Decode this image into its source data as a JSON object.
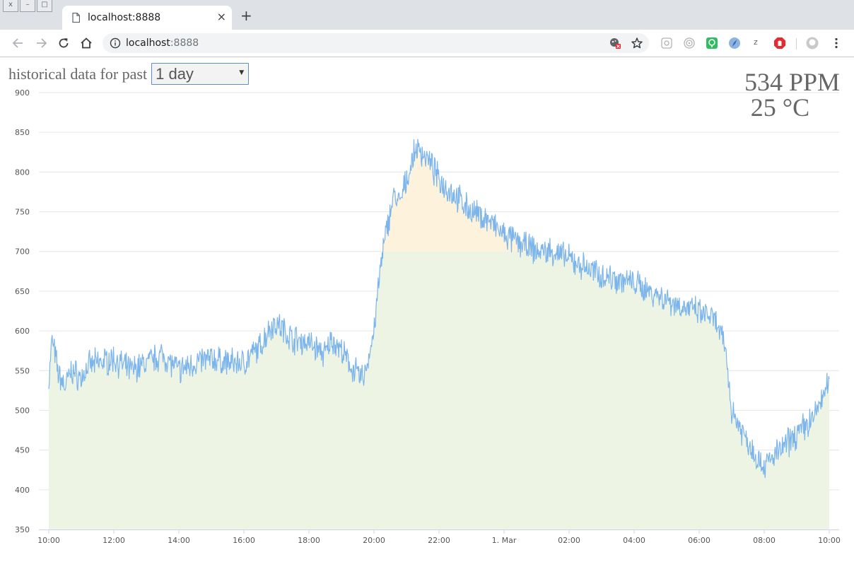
{
  "browser": {
    "window_controls": [
      "x",
      "–",
      "□"
    ],
    "tab": {
      "title": "localhost:8888",
      "close": "×"
    },
    "new_tab": "+",
    "address": {
      "host": "localhost",
      "port": ":8888"
    },
    "icons": {
      "back": "arrow-left-icon",
      "forward": "arrow-right-icon",
      "reload": "reload-icon",
      "home": "home-icon",
      "info": "info-icon",
      "blocked": "tracker-blocked-icon",
      "bookmark": "star-icon",
      "menu": "kebab-menu-icon"
    },
    "extensions": [
      {
        "name": "ext-puzzle-icon",
        "color": "#9aa0a6"
      },
      {
        "name": "ext-target-icon",
        "color": "#9aa0a6"
      },
      {
        "name": "ext-evernote-icon",
        "color": "#2dbe60"
      },
      {
        "name": "ext-compass-icon",
        "color": "#3b6db3"
      },
      {
        "name": "ext-zotero-icon",
        "color": "#5f6368",
        "text": "z"
      },
      {
        "name": "ext-adblock-icon",
        "color": "#e8292f"
      },
      {
        "name": "ext-profile-icon",
        "color": "#9aa0a6"
      }
    ]
  },
  "controls": {
    "range_label": "historical data for past",
    "range_selected": "1 day"
  },
  "readout": {
    "ppm": "534 PPM",
    "temperature": "25 °C"
  },
  "chart_data": {
    "type": "area",
    "title": "",
    "xlabel": "",
    "ylabel": "",
    "ylim": [
      350,
      900
    ],
    "y_ticks": [
      900,
      850,
      800,
      750,
      700,
      650,
      600,
      550,
      500,
      450,
      400,
      350
    ],
    "x_ticks": [
      "10:00",
      "12:00",
      "14:00",
      "16:00",
      "18:00",
      "20:00",
      "22:00",
      "1. Mar",
      "02:00",
      "04:00",
      "06:00",
      "08:00",
      "10:00"
    ],
    "x_hours_range": [
      0,
      24
    ],
    "threshold": 700,
    "colors": {
      "line": "#7cb5ec",
      "fill_below": "#edf4e3",
      "fill_above": "#fdf3dc",
      "grid": "#e6e6e6"
    },
    "grid": true,
    "series": [
      {
        "x_hours": [
          0,
          0.1,
          0.3,
          0.5,
          0.7,
          1.0,
          1.2,
          1.5,
          2.0,
          2.5,
          3.0,
          3.5,
          4.0,
          4.5,
          5.0,
          5.5,
          6.0,
          6.5,
          6.8,
          7.0,
          7.5,
          8.0,
          8.5,
          8.7,
          9.0,
          9.2,
          9.4,
          9.6,
          9.7,
          9.8,
          10.0,
          10.2,
          10.4,
          10.5,
          10.6,
          10.8,
          11.0,
          11.3,
          11.6,
          12.0,
          12.5,
          13.0,
          13.5,
          14.0,
          14.5,
          15.0,
          15.5,
          16.0,
          16.5,
          17.0,
          17.5,
          18.0,
          18.5,
          19.0,
          19.5,
          19.9,
          20.1,
          20.3,
          20.5,
          20.8,
          21.0,
          21.5,
          21.8,
          22.0,
          22.5,
          23.0,
          23.5,
          24.0
        ],
        "values": [
          535,
          590,
          545,
          530,
          550,
          540,
          555,
          560,
          565,
          550,
          560,
          570,
          550,
          560,
          565,
          560,
          560,
          580,
          605,
          610,
          590,
          585,
          570,
          590,
          575,
          560,
          550,
          540,
          545,
          560,
          600,
          680,
          730,
          750,
          770,
          760,
          790,
          830,
          820,
          790,
          770,
          750,
          740,
          720,
          710,
          700,
          700,
          690,
          680,
          670,
          665,
          660,
          650,
          640,
          630,
          625,
          620,
          620,
          610,
          580,
          500,
          460,
          440,
          430,
          450,
          470,
          490,
          535
        ]
      }
    ]
  }
}
